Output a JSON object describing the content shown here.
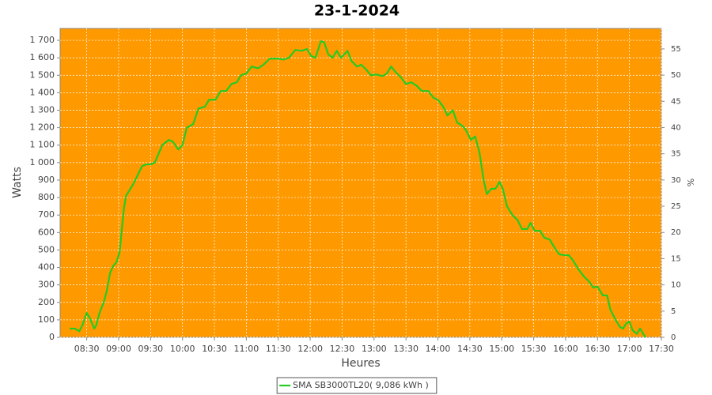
{
  "chart_data": {
    "type": "line",
    "title": "23-1-2024",
    "x_label": "Heures",
    "y_label": "Watts",
    "y2_label": "%",
    "background": "#ff9900",
    "grid": true,
    "legend": "bottom",
    "xlim": [
      "08:05",
      "17:30"
    ],
    "xticks": [
      "08:30",
      "09:00",
      "09:30",
      "10:00",
      "10:30",
      "11:00",
      "11:30",
      "12:00",
      "12:30",
      "13:00",
      "13:30",
      "14:00",
      "14:30",
      "15:00",
      "15:30",
      "16:00",
      "16:30",
      "17:00",
      "17:30"
    ],
    "ylim": [
      0,
      1768
    ],
    "yticks": [
      0,
      100,
      200,
      300,
      400,
      500,
      600,
      700,
      800,
      900,
      {
        "value": 1000,
        "label": "1 000"
      },
      {
        "value": 1100,
        "label": "1 100"
      },
      {
        "value": 1200,
        "label": "1 200"
      },
      {
        "value": 1300,
        "label": "1 300"
      },
      {
        "value": 1400,
        "label": "1 400"
      },
      {
        "value": 1500,
        "label": "1 500"
      },
      {
        "value": 1600,
        "label": "1 600"
      },
      {
        "value": 1700,
        "label": "1 700"
      }
    ],
    "y2lim": [
      0,
      58.9
    ],
    "y2ticks": [
      0,
      5,
      10,
      15,
      20,
      25,
      30,
      35,
      40,
      45,
      50,
      55
    ],
    "x": [
      "08:14",
      "08:19",
      "08:23",
      "08:26",
      "08:30",
      "08:33",
      "08:37",
      "08:39",
      "08:42",
      "08:46",
      "08:49",
      "08:52",
      "08:55",
      "08:58",
      "09:01",
      "09:03",
      "09:05",
      "09:07",
      "09:10",
      "09:14",
      "09:18",
      "09:22",
      "09:26",
      "09:30",
      "09:34",
      "09:41",
      "09:47",
      "09:51",
      "09:56",
      "10:00",
      "10:04",
      "10:10",
      "10:15",
      "10:21",
      "10:25",
      "10:31",
      "10:36",
      "10:41",
      "10:46",
      "10:51",
      "10:55",
      "11:00",
      "11:05",
      "11:11",
      "11:16",
      "11:22",
      "11:30",
      "11:35",
      "11:40",
      "11:46",
      "11:52",
      "11:57",
      "12:01",
      "12:05",
      "12:10",
      "12:13",
      "12:17",
      "12:21",
      "12:25",
      "12:29",
      "12:35",
      "12:39",
      "12:44",
      "12:48",
      "12:53",
      "12:57",
      "13:02",
      "13:08",
      "13:12",
      "13:16",
      "13:20",
      "13:25",
      "13:30",
      "13:35",
      "13:40",
      "13:45",
      "13:51",
      "13:56",
      "14:00",
      "14:05",
      "14:09",
      "14:14",
      "14:18",
      "14:23",
      "14:26",
      "14:31",
      "14:35",
      "14:39",
      "14:43",
      "14:46",
      "14:50",
      "14:54",
      "14:58",
      "15:01",
      "15:05",
      "15:10",
      "15:15",
      "15:19",
      "15:24",
      "15:27",
      "15:31",
      "15:36",
      "15:40",
      "15:45",
      "15:50",
      "15:54",
      "15:59",
      "16:03",
      "16:07",
      "16:12",
      "16:17",
      "16:22",
      "16:26",
      "16:30",
      "16:35",
      "16:39",
      "16:42",
      "16:47",
      "16:51",
      "16:54",
      "16:57",
      "17:00",
      "17:03",
      "17:07",
      "17:10",
      "17:15"
    ],
    "series": [
      {
        "name": "SMA SB3000TL20( 9,086 kWh )",
        "color": "#22cc22",
        "values": [
          50,
          50,
          35,
          70,
          140,
          110,
          50,
          70,
          140,
          200,
          270,
          370,
          410,
          430,
          490,
          620,
          740,
          810,
          840,
          880,
          930,
          980,
          990,
          990,
          1000,
          1100,
          1130,
          1120,
          1075,
          1100,
          1200,
          1220,
          1310,
          1320,
          1360,
          1360,
          1410,
          1410,
          1450,
          1460,
          1500,
          1510,
          1550,
          1540,
          1560,
          1595,
          1595,
          1590,
          1600,
          1645,
          1640,
          1650,
          1610,
          1600,
          1695,
          1690,
          1620,
          1600,
          1640,
          1600,
          1640,
          1580,
          1550,
          1560,
          1530,
          1500,
          1505,
          1495,
          1510,
          1550,
          1520,
          1490,
          1450,
          1460,
          1440,
          1410,
          1410,
          1370,
          1360,
          1320,
          1270,
          1300,
          1230,
          1210,
          1190,
          1130,
          1150,
          1060,
          900,
          820,
          850,
          850,
          890,
          850,
          750,
          700,
          670,
          620,
          620,
          655,
          610,
          610,
          570,
          560,
          510,
          475,
          470,
          470,
          440,
          390,
          350,
          320,
          285,
          290,
          240,
          240,
          160,
          100,
          60,
          50,
          80,
          90,
          40,
          20,
          50,
          0
        ]
      }
    ]
  }
}
